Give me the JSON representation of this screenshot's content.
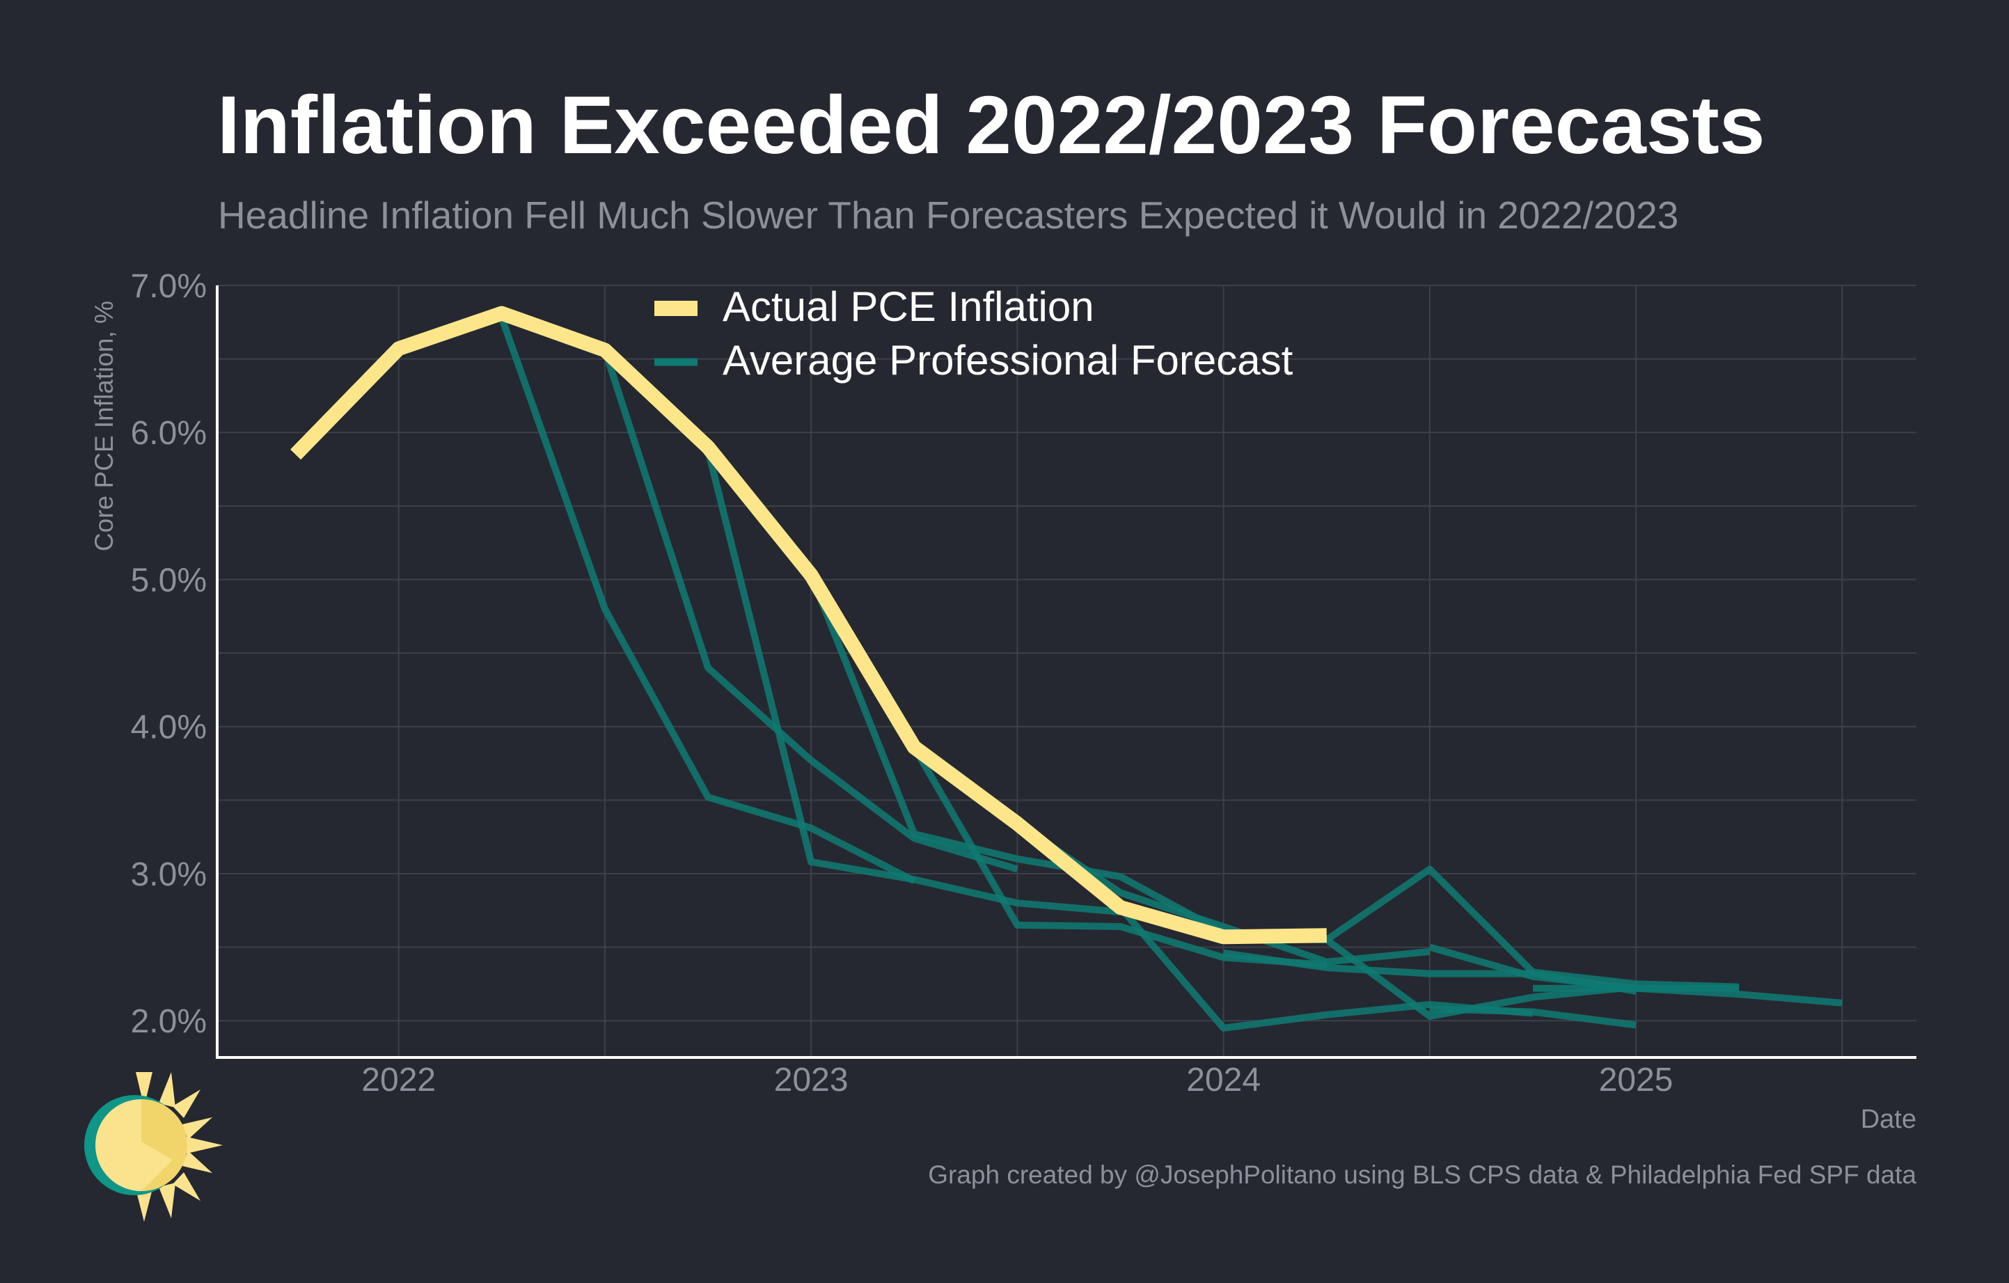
{
  "colors": {
    "background": "#252830",
    "grid": "#3d4049",
    "axis": "#ffffff",
    "actual": "#fde68a",
    "forecast": "#0f7a73",
    "text_muted": "#8d9099",
    "logo_ring": "#0f9688",
    "logo_sun": "#fbe38e",
    "logo_shade": "#f2d56a"
  },
  "chart_data": {
    "type": "line",
    "title": "Inflation Exceeded 2022/2023 Forecasts",
    "subtitle": "Headline Inflation Fell Much Slower Than Forecasters Expected it Would in 2022/2023",
    "xlabel": "Date",
    "ylabel": "Core PCE Inflation, %",
    "xlim": [
      2021.56,
      2025.68
    ],
    "ylim": [
      1.75,
      7.0
    ],
    "x_ticks": [
      2022,
      2023,
      2024,
      2025
    ],
    "x_tick_labels": [
      "2022",
      "2023",
      "2024",
      "2025"
    ],
    "y_ticks": [
      2,
      3,
      4,
      5,
      6,
      7
    ],
    "y_tick_labels": [
      "2.0%",
      "3.0%",
      "4.0%",
      "5.0%",
      "6.0%",
      "7.0%"
    ],
    "grid": true,
    "legend_position": "top-center",
    "series": [
      {
        "name": "Actual PCE Inflation",
        "color": "#fde68a",
        "x": [
          2021.75,
          2022.0,
          2022.25,
          2022.5,
          2022.75,
          2023.0,
          2023.25,
          2023.5,
          2023.75,
          2024.0,
          2024.25
        ],
        "y": [
          5.85,
          6.57,
          6.81,
          6.56,
          5.9,
          5.03,
          3.86,
          3.34,
          2.77,
          2.57,
          2.58
        ]
      },
      {
        "name": "Average Professional Forecast",
        "color": "#0f7a73",
        "forecast_paths": [
          {
            "x": [
              2022.25,
              2022.5,
              2022.75,
              2023.0,
              2023.25
            ],
            "y": [
              6.78,
              4.8,
              3.52,
              3.31,
              2.95
            ]
          },
          {
            "x": [
              2022.5,
              2022.75,
              2023.0,
              2023.25,
              2023.5
            ],
            "y": [
              6.56,
              4.4,
              3.77,
              3.24,
              3.03
            ]
          },
          {
            "x": [
              2022.75,
              2023.0,
              2023.25,
              2023.5,
              2023.75
            ],
            "y": [
              5.88,
              3.08,
              2.96,
              2.8,
              2.74
            ]
          },
          {
            "x": [
              2023.0,
              2023.25,
              2023.5,
              2023.75,
              2024.0
            ],
            "y": [
              5.03,
              3.27,
              3.1,
              2.98,
              2.6
            ]
          },
          {
            "x": [
              2023.25,
              2023.5,
              2023.75,
              2024.0,
              2024.25
            ],
            "y": [
              3.86,
              2.65,
              2.64,
              2.43,
              2.38
            ]
          },
          {
            "x": [
              2023.5,
              2023.75,
              2024.0,
              2024.25,
              2024.5
            ],
            "y": [
              3.34,
              2.87,
              2.64,
              2.4,
              2.47
            ]
          },
          {
            "x": [
              2023.75,
              2024.0,
              2024.25,
              2024.5,
              2024.75
            ],
            "y": [
              2.77,
              1.95,
              2.04,
              2.11,
              2.05
            ]
          },
          {
            "x": [
              2024.0,
              2024.25,
              2024.5,
              2024.75,
              2025.0
            ],
            "y": [
              2.57,
              2.55,
              2.03,
              2.16,
              2.23
            ]
          },
          {
            "x": [
              2024.0,
              2024.25,
              2024.5,
              2024.75,
              2025.0
            ],
            "y": [
              2.46,
              2.36,
              2.32,
              2.32,
              2.2
            ]
          },
          {
            "x": [
              2024.25,
              2024.5,
              2024.75,
              2025.0,
              2025.25
            ],
            "y": [
              2.55,
              3.03,
              2.33,
              2.25,
              2.23
            ]
          },
          {
            "x": [
              2024.5,
              2024.75,
              2025.0,
              2025.25
            ],
            "y": [
              2.5,
              2.3,
              2.22,
              2.22
            ]
          },
          {
            "x": [
              2024.75,
              2025.0,
              2025.25,
              2025.5
            ],
            "y": [
              2.22,
              2.22,
              2.18,
              2.12
            ]
          },
          {
            "x": [
              2024.5,
              2024.75,
              2025.0
            ],
            "y": [
              2.08,
              2.06,
              1.97
            ]
          }
        ]
      }
    ],
    "annotation": "Graph created by @JosephPolitano using BLS CPS data & Philadelphia Fed SPF data"
  }
}
